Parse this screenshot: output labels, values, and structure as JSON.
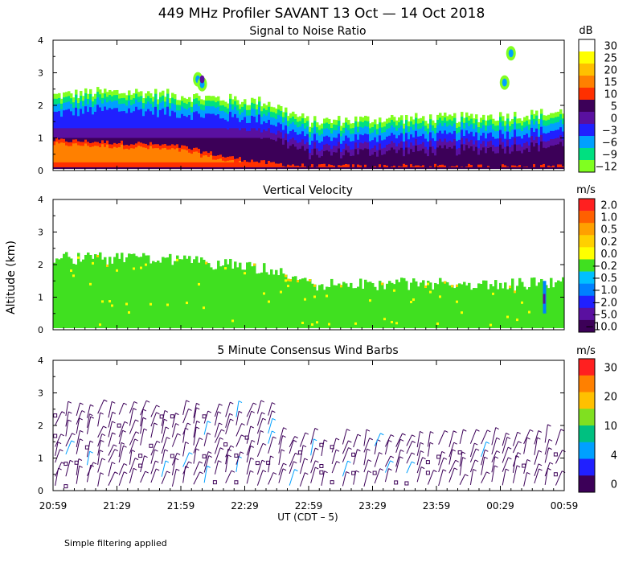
{
  "figure": {
    "title": "449 MHz Profiler SAVANT 13 Oct — 14 Oct 2018",
    "ylabel": "Altitude (km)",
    "xlabel": "UT (CDT – 5)",
    "footnote": "Simple filtering applied",
    "x_ticks": [
      "20:59",
      "21:29",
      "21:59",
      "22:29",
      "22:59",
      "23:29",
      "23:59",
      "00:29",
      "00:59"
    ]
  },
  "chart_data": [
    {
      "type": "heatmap",
      "title": "Signal to Noise Ratio",
      "ylim": [
        0,
        4
      ],
      "yticks": [
        "0",
        "1",
        "2",
        "3",
        "4"
      ],
      "xlim_minutes": [
        0,
        240
      ],
      "colorbar": {
        "unit": "dB",
        "labels": [
          "30",
          "25",
          "20",
          "15",
          "10",
          "5",
          "0",
          "−3",
          "−6",
          "−9",
          "−12"
        ],
        "colors": [
          "#ffffff",
          "#ffff00",
          "#ffc000",
          "#ff8000",
          "#ff3000",
          "#3c0058",
          "#5a10a0",
          "#2020ff",
          "#00a0ff",
          "#00e080",
          "#80ff20"
        ]
      },
      "profile_minutes": [
        0,
        20,
        40,
        60,
        80,
        100,
        120,
        140,
        160,
        180,
        200,
        220,
        240
      ],
      "echo_top_km": [
        2.3,
        2.4,
        2.4,
        2.3,
        2.2,
        2.1,
        1.5,
        1.55,
        1.6,
        1.6,
        1.65,
        1.7,
        1.8
      ],
      "strong_layer_top_km": [
        0.9,
        0.85,
        0.8,
        0.7,
        0.4,
        0.2,
        0.1,
        0.1,
        0.1,
        0.1,
        0.1,
        0.1,
        0.1
      ]
    },
    {
      "type": "heatmap",
      "title": "Vertical Velocity",
      "ylim": [
        0,
        4
      ],
      "yticks": [
        "0",
        "1",
        "2",
        "3",
        "4"
      ],
      "xlim_minutes": [
        0,
        240
      ],
      "colorbar": {
        "unit": "m/s",
        "labels": [
          "2.0",
          "1.0",
          "0.5",
          "0.2",
          "0.0",
          "−0.2",
          "−0.5",
          "−1.0",
          "−2.0",
          "−5.0",
          "−10.0"
        ],
        "colors": [
          "#ff2020",
          "#ff6000",
          "#ffa000",
          "#ffd000",
          "#ffff00",
          "#40e020",
          "#00c0ff",
          "#0080ff",
          "#2020ff",
          "#5a10a0",
          "#3c0058"
        ]
      },
      "profile_minutes": [
        0,
        20,
        40,
        60,
        80,
        100,
        120,
        140,
        160,
        180,
        200,
        220,
        240
      ],
      "echo_top_km": [
        2.2,
        2.2,
        2.2,
        2.1,
        2.0,
        1.9,
        1.4,
        1.4,
        1.4,
        1.4,
        1.4,
        1.4,
        1.5
      ]
    },
    {
      "type": "scatter",
      "title": "5 Minute Consensus Wind Barbs",
      "ylim": [
        0,
        4
      ],
      "yticks": [
        "0",
        "1",
        "2",
        "3",
        "4"
      ],
      "xlim_minutes": [
        0,
        240
      ],
      "colorbar": {
        "unit": "m/s",
        "labels": [
          "30",
          "20",
          "10",
          "4",
          "0"
        ],
        "colors": [
          "#ff2020",
          "#ff8000",
          "#ffc000",
          "#80e020",
          "#00c080",
          "#00a0ff",
          "#2020ff",
          "#3c0058"
        ]
      },
      "barb_interval_minutes": 5,
      "barb_heights_km": [
        0.2,
        0.5,
        0.8,
        1.1,
        1.4,
        1.7,
        2.0,
        2.3
      ]
    }
  ]
}
